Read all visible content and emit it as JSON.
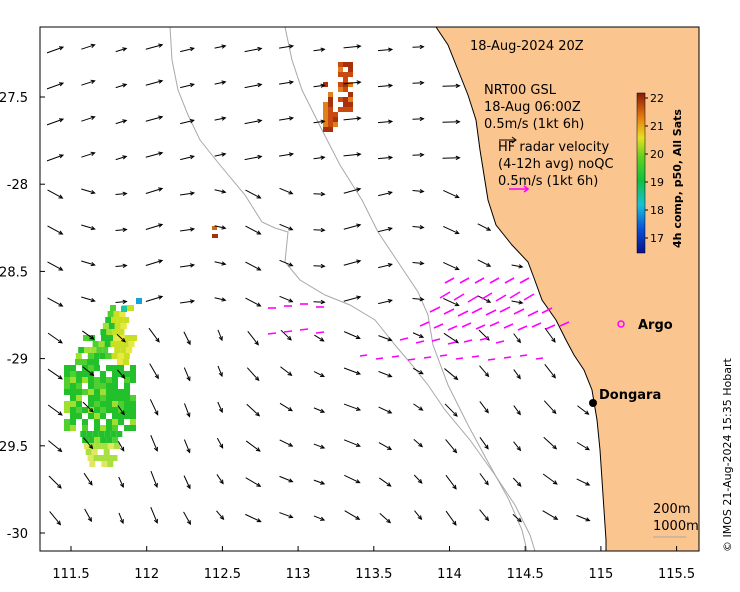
{
  "map": {
    "timestamp": "18-Aug-2024 20Z",
    "legend_lines": [
      "NRT00 GSL",
      "18-Aug 06:00Z",
      "0.5m/s (1kt 6h)"
    ],
    "hf_lines": [
      "HF radar velocity",
      "(4-12h avg) noQC",
      "0.5m/s (1kt 6h)"
    ],
    "x_ticks": [
      "111.5",
      "112",
      "112.5",
      "113",
      "113.5",
      "114",
      "114.5",
      "115",
      "115.5"
    ],
    "y_ticks": [
      "-27.5",
      "-28",
      "-28.5",
      "-29",
      "-29.5",
      "-30"
    ],
    "colorbar": {
      "ticks": [
        "22",
        "21",
        "20",
        "19",
        "18",
        "17"
      ],
      "title": "4h comp, p50, All Sats"
    },
    "places": {
      "argo": "Argo",
      "dongara": "Dongara"
    },
    "depth_labels": [
      "200m",
      "1000m"
    ],
    "credit": "© IMOS 21-Aug-2024 15:35 Hobart",
    "colors": {
      "land": "#fbc58f",
      "hf_arrows": "#ff00ff",
      "bathy": "#a8a8a8",
      "argo": "#ff00ff"
    }
  }
}
